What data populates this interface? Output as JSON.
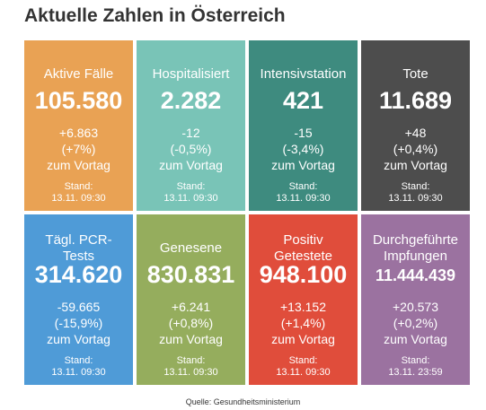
{
  "title": "Aktuelle Zahlen in Österreich",
  "tiles": [
    {
      "label": [
        "Aktive Fälle"
      ],
      "value": "105.580",
      "change": "+6.863",
      "percent": "(+7%)",
      "compare": "zum Vortag",
      "stand": "Stand:",
      "date": "13.11. 09:30",
      "color": "#e9a254"
    },
    {
      "label": [
        "Hospitalisiert"
      ],
      "value": "2.282",
      "change": "-12",
      "percent": "(-0,5%)",
      "compare": "zum Vortag",
      "stand": "Stand:",
      "date": "13.11. 09:30",
      "color": "#79c4b7"
    },
    {
      "label": [
        "Intensivstation"
      ],
      "value": "421",
      "change": "-15",
      "percent": "(-3,4%)",
      "compare": "zum Vortag",
      "stand": "Stand:",
      "date": "13.11. 09:30",
      "color": "#3e8b7f"
    },
    {
      "label": [
        "Tote"
      ],
      "value": "11.689",
      "change": "+48",
      "percent": "(+0,4%)",
      "compare": "zum Vortag",
      "stand": "Stand:",
      "date": "13.11. 09:30",
      "color": "#4d4d4d"
    },
    {
      "label": [
        "Tägl. PCR-",
        "Tests"
      ],
      "value": "314.620",
      "change": "-59.665",
      "percent": "(-15,9%)",
      "compare": "zum Vortag",
      "stand": "Stand:",
      "date": "13.11. 09:30",
      "color": "#4f9bd7"
    },
    {
      "label": [
        "Genesene"
      ],
      "value": "830.831",
      "change": "+6.241",
      "percent": "(+0,8%)",
      "compare": "zum Vortag",
      "stand": "Stand:",
      "date": "13.11. 09:30",
      "color": "#95ad5d"
    },
    {
      "label": [
        "Positiv",
        "Getestete"
      ],
      "value": "948.100",
      "change": "+13.152",
      "percent": "(+1,4%)",
      "compare": "zum Vortag",
      "stand": "Stand:",
      "date": "13.11. 09:30",
      "color": "#e04d3b"
    },
    {
      "label": [
        "Durchgeführte",
        "Impfungen"
      ],
      "value": "11.444.439",
      "change": "+20.573",
      "percent": "(+0,2%)",
      "compare": "zum Vortag",
      "stand": "Stand:",
      "date": "13.11. 23:59",
      "color": "#9b72a0"
    }
  ],
  "source": "Quelle: Gesundheitsministerium"
}
